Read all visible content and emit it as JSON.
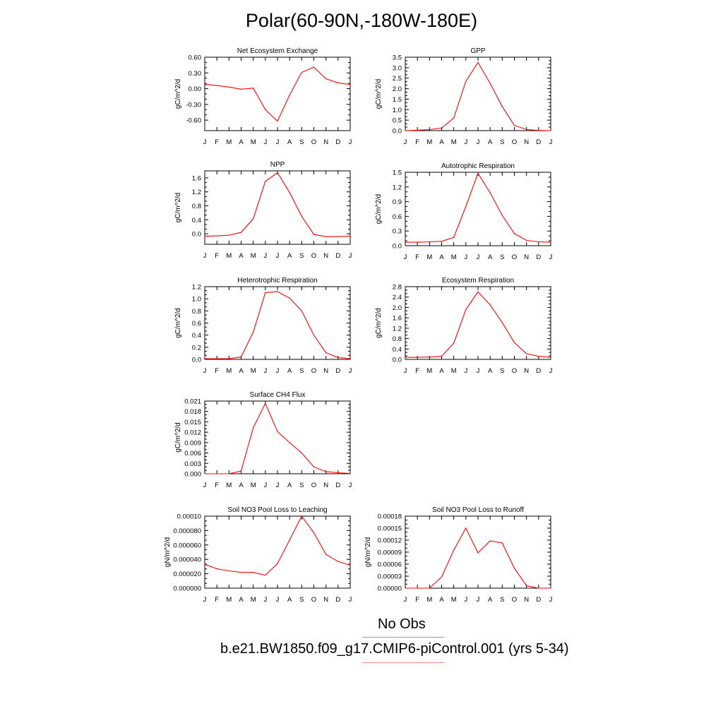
{
  "figure": {
    "title": "Polar(60-90N,-180W-180E)",
    "legend": {
      "obs_label": "No Obs",
      "obs_color": "#8a8aff",
      "model_label": "b.e21.BW1850.f09_g17.CMIP6-piControl.001 (yrs 5-34)",
      "model_color": "#ff8a8a"
    }
  },
  "chart_data": [
    {
      "type": "line",
      "title": "Net Ecosystem Exchange",
      "ylabel": "gC/m^2/d",
      "xlabel": "",
      "categories": [
        "J",
        "F",
        "M",
        "A",
        "M",
        "J",
        "J",
        "A",
        "S",
        "O",
        "N",
        "D",
        "J"
      ],
      "ylim": [
        -0.8,
        0.6
      ],
      "yticks": [
        0.6,
        0.3,
        0.0,
        -0.3,
        -0.6
      ],
      "ytick_labels": [
        "0.60",
        "0.30",
        "0.00",
        "-0.30",
        "-0.60"
      ],
      "series": [
        {
          "values": [
            0.08,
            0.06,
            0.03,
            -0.01,
            0.01,
            -0.4,
            -0.62,
            -0.12,
            0.31,
            0.41,
            0.19,
            0.11,
            0.08
          ],
          "color": "#ff0000"
        }
      ]
    },
    {
      "type": "line",
      "title": "GPP",
      "ylabel": "gC/m^2/d",
      "xlabel": "",
      "categories": [
        "J",
        "F",
        "M",
        "A",
        "M",
        "J",
        "J",
        "A",
        "S",
        "O",
        "N",
        "D",
        "J"
      ],
      "ylim": [
        0.0,
        3.5
      ],
      "yticks": [
        3.5,
        3.0,
        2.5,
        2.0,
        1.5,
        1.0,
        0.5,
        0.0
      ],
      "ytick_labels": [
        "3.5",
        "3.0",
        "2.5",
        "2.0",
        "1.5",
        "1.0",
        "0.5",
        "0.0"
      ],
      "series": [
        {
          "values": [
            0.0,
            0.02,
            0.05,
            0.12,
            0.6,
            2.35,
            3.25,
            2.25,
            1.15,
            0.25,
            0.05,
            0.01,
            0.0
          ],
          "color": "#ff0000"
        }
      ]
    },
    {
      "type": "line",
      "title": "NPP",
      "ylabel": "gC/m^2/d",
      "xlabel": "",
      "categories": [
        "J",
        "F",
        "M",
        "A",
        "M",
        "J",
        "J",
        "A",
        "S",
        "O",
        "N",
        "D",
        "J"
      ],
      "ylim": [
        -0.3,
        1.8
      ],
      "yticks": [
        1.6,
        1.2,
        0.8,
        0.4,
        0.0
      ],
      "ytick_labels": [
        "1.6",
        "1.2",
        "0.8",
        "0.4",
        "0.0"
      ],
      "series": [
        {
          "values": [
            -0.07,
            -0.06,
            -0.04,
            0.04,
            0.43,
            1.5,
            1.75,
            1.18,
            0.5,
            -0.02,
            -0.08,
            -0.08,
            -0.07
          ],
          "color": "#ff0000"
        }
      ]
    },
    {
      "type": "line",
      "title": "Autotrophic Respiration",
      "ylabel": "gC/m^2/d",
      "xlabel": "",
      "categories": [
        "J",
        "F",
        "M",
        "A",
        "M",
        "J",
        "J",
        "A",
        "S",
        "O",
        "N",
        "D",
        "J"
      ],
      "ylim": [
        0.0,
        1.5
      ],
      "yticks": [
        1.5,
        1.2,
        0.9,
        0.6,
        0.3,
        0.0
      ],
      "ytick_labels": [
        "1.5",
        "1.2",
        "0.9",
        "0.6",
        "0.3",
        "0.0"
      ],
      "series": [
        {
          "values": [
            0.07,
            0.07,
            0.08,
            0.09,
            0.17,
            0.8,
            1.48,
            1.08,
            0.62,
            0.25,
            0.11,
            0.08,
            0.07
          ],
          "color": "#ff0000"
        }
      ]
    },
    {
      "type": "line",
      "title": "Heterotrophic Respiration",
      "ylabel": "gC/m^2/d",
      "xlabel": "",
      "categories": [
        "J",
        "F",
        "M",
        "A",
        "M",
        "J",
        "J",
        "A",
        "S",
        "O",
        "N",
        "D",
        "J"
      ],
      "ylim": [
        0.0,
        1.2
      ],
      "yticks": [
        1.2,
        1.0,
        0.8,
        0.6,
        0.4,
        0.2,
        0.0
      ],
      "ytick_labels": [
        "1.2",
        "1.0",
        "0.8",
        "0.6",
        "0.4",
        "0.2",
        "0.0"
      ],
      "series": [
        {
          "values": [
            0.01,
            0.01,
            0.01,
            0.04,
            0.45,
            1.1,
            1.12,
            1.01,
            0.8,
            0.4,
            0.11,
            0.03,
            0.01
          ],
          "color": "#ff0000"
        }
      ]
    },
    {
      "type": "line",
      "title": "Ecosystem Respiration",
      "ylabel": "gC/m^2/d",
      "xlabel": "",
      "categories": [
        "J",
        "F",
        "M",
        "A",
        "M",
        "J",
        "J",
        "A",
        "S",
        "O",
        "N",
        "D",
        "J"
      ],
      "ylim": [
        0.0,
        2.8
      ],
      "yticks": [
        2.8,
        2.4,
        2.0,
        1.6,
        1.2,
        0.8,
        0.4,
        0.0
      ],
      "ytick_labels": [
        "2.8",
        "2.4",
        "2.0",
        "1.6",
        "1.2",
        "0.8",
        "0.4",
        "0.0"
      ],
      "series": [
        {
          "values": [
            0.08,
            0.08,
            0.09,
            0.12,
            0.62,
            1.92,
            2.6,
            2.1,
            1.42,
            0.65,
            0.22,
            0.12,
            0.08
          ],
          "color": "#ff0000"
        }
      ]
    },
    {
      "type": "line",
      "title": "Surface CH4 Flux",
      "ylabel": "gC/m^2/d",
      "xlabel": "",
      "categories": [
        "J",
        "F",
        "M",
        "A",
        "M",
        "J",
        "J",
        "A",
        "S",
        "O",
        "N",
        "D",
        "J"
      ],
      "ylim": [
        0.0,
        0.021
      ],
      "yticks": [
        0.021,
        0.018,
        0.015,
        0.012,
        0.009,
        0.006,
        0.003,
        0.0
      ],
      "ytick_labels": [
        "0.021",
        "0.018",
        "0.015",
        "0.012",
        "0.009",
        "0.006",
        "0.003",
        "0.000"
      ],
      "series": [
        {
          "values": [
            0.0,
            0.0,
            0.0,
            0.0008,
            0.0133,
            0.0203,
            0.0122,
            0.009,
            0.006,
            0.002,
            0.0006,
            0.0003,
            0.0001
          ],
          "color": "#ff0000"
        }
      ]
    },
    {
      "type": "line",
      "title": "Soil NO3 Pool Loss to Leaching",
      "ylabel": "gN/m^2/d",
      "xlabel": "",
      "categories": [
        "J",
        "F",
        "M",
        "A",
        "M",
        "J",
        "J",
        "A",
        "S",
        "O",
        "N",
        "D",
        "J"
      ],
      "ylim": [
        0.0,
        0.0001
      ],
      "yticks": [
        0.0001,
        8e-05,
        6e-05,
        4e-05,
        2e-05,
        0.0
      ],
      "ytick_labels": [
        "0.00010",
        "0.000080",
        "0.000060",
        "0.000040",
        "0.000020",
        "0.000000"
      ],
      "series": [
        {
          "values": [
            3.3e-05,
            2.7e-05,
            2.4e-05,
            2.2e-05,
            2.2e-05,
            1.8e-05,
            3.4e-05,
            6.7e-05,
            0.0001,
            7.7e-05,
            4.7e-05,
            3.7e-05,
            3.2e-05
          ],
          "color": "#ff0000"
        }
      ]
    },
    {
      "type": "line",
      "title": "Soil NO3 Pool Loss to Runoff",
      "ylabel": "gN/m^2/d",
      "xlabel": "",
      "categories": [
        "J",
        "F",
        "M",
        "A",
        "M",
        "J",
        "J",
        "A",
        "S",
        "O",
        "N",
        "D",
        "J"
      ],
      "ylim": [
        0.0,
        0.00018
      ],
      "yticks": [
        0.00018,
        0.00015,
        0.00012,
        9e-05,
        6e-05,
        3e-05,
        0.0
      ],
      "ytick_labels": [
        "0.00018",
        "0.00015",
        "0.00012",
        "0.00009",
        "0.00006",
        "0.00003",
        "0.00000"
      ],
      "series": [
        {
          "values": [
            0.0,
            0.0,
            0.0,
            2.8e-05,
            9.5e-05,
            0.00015,
            8.8e-05,
            0.000118,
            0.000113,
            5e-05,
            6e-06,
            0.0,
            0.0
          ],
          "color": "#ff0000"
        }
      ]
    }
  ]
}
